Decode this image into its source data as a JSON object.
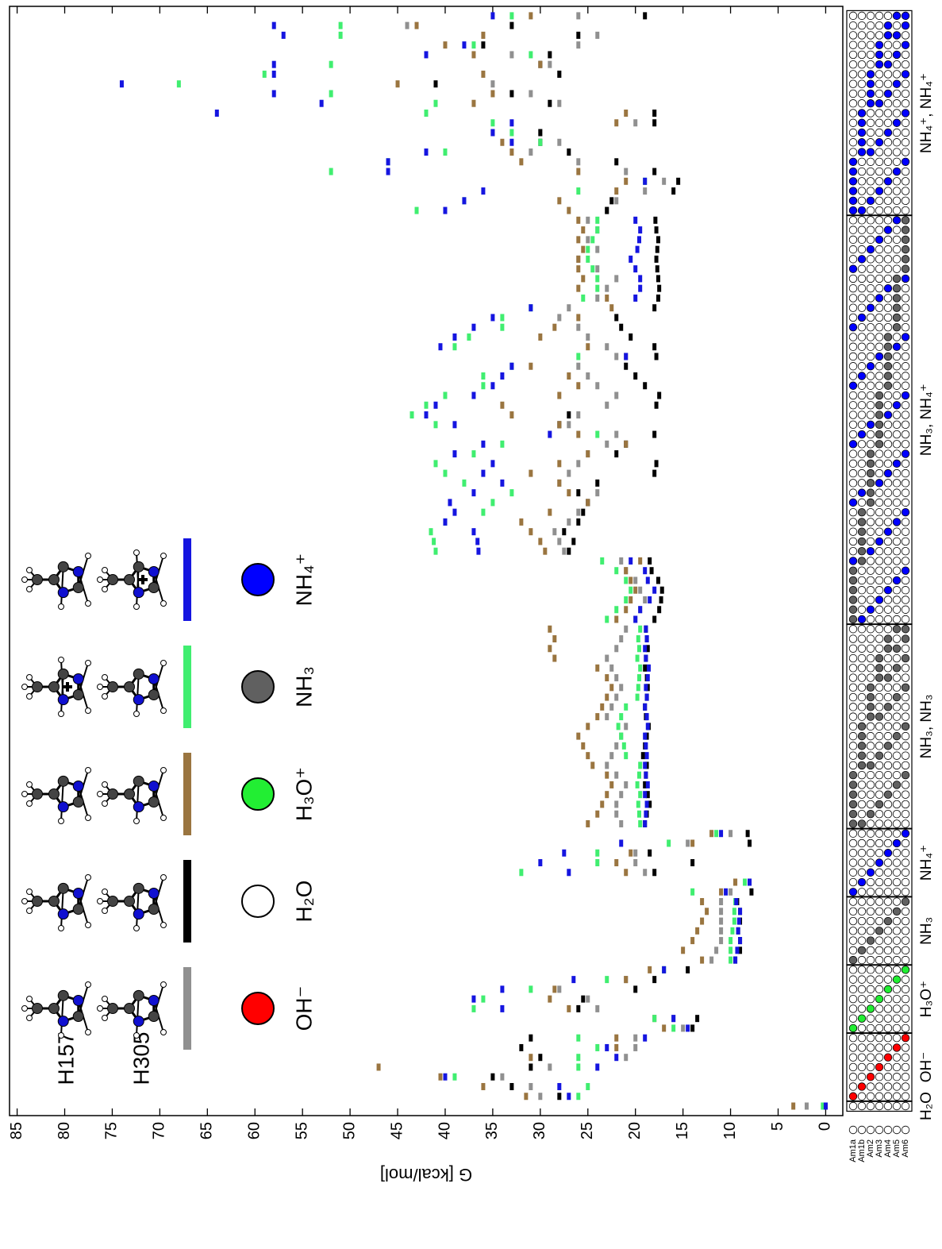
{
  "chart_data": {
    "type": "strip",
    "y_label": "G [kcal/mol]",
    "ylim": [
      -1.8,
      85.8
    ],
    "yticks": [
      0,
      5,
      10,
      15,
      20,
      25,
      30,
      35,
      40,
      45,
      50,
      55,
      60,
      65,
      70,
      75,
      80,
      85
    ],
    "series": [
      {
        "color": "#909090",
        "values": [
          2,
          30,
          31,
          34,
          29,
          21,
          20,
          20,
          15,
          16,
          24,
          25,
          28,
          21,
          17,
          12,
          11.5,
          11,
          11,
          11,
          11,
          11,
          10,
          9.5,
          19,
          20,
          20,
          14.5,
          10,
          21.5,
          22,
          22,
          21.5,
          21,
          22,
          23,
          22.5,
          22,
          21.5,
          21,
          23,
          22.5,
          22,
          21.5,
          22,
          22.5,
          23,
          22,
          21.5,
          21,
          20,
          19.5,
          19,
          19.5,
          20,
          21,
          21.5,
          27.5,
          28,
          28.5,
          27,
          26,
          25,
          24,
          28,
          27,
          26,
          25,
          23,
          22,
          27,
          26,
          23,
          22,
          24,
          25,
          26,
          22,
          23,
          25,
          26,
          28,
          27,
          24,
          23,
          22,
          24,
          26,
          24,
          25,
          24,
          25,
          23,
          22,
          19,
          17,
          21,
          26,
          31,
          28,
          30,
          20,
          18,
          28,
          31,
          35,
          28,
          29,
          33,
          26,
          24,
          44,
          26
        ]
      },
      {
        "color": "#000000",
        "values": [
          0,
          28,
          33,
          35,
          31,
          30,
          32,
          31,
          14,
          13.5,
          26,
          25.5,
          20,
          18,
          14.5,
          9.5,
          9,
          9,
          9.2,
          9,
          9,
          9.3,
          7.8,
          8,
          18,
          14,
          18.5,
          8,
          8.2,
          19,
          18.8,
          18.5,
          18.7,
          19,
          18.9,
          18.8,
          19.2,
          19,
          18.8,
          18.6,
          18.9,
          19,
          18.8,
          18.7,
          18.8,
          19,
          18.9,
          18.7,
          18.8,
          18.9,
          18,
          17.5,
          17.3,
          17.2,
          17.6,
          18.3,
          18.5,
          27,
          26.5,
          27.5,
          26,
          25.5,
          25,
          26,
          24,
          18,
          17.8,
          22,
          21,
          18,
          28,
          27,
          17.8,
          17.5,
          19,
          20,
          21,
          17.8,
          18,
          20.5,
          21.5,
          22,
          18,
          17.6,
          17.5,
          17.6,
          17.7,
          17.8,
          17.7,
          17.6,
          17.8,
          17.9,
          23,
          22.5,
          16,
          15.5,
          18,
          22,
          27,
          30,
          30,
          18,
          18,
          29,
          33,
          41,
          28,
          30,
          29,
          36,
          26,
          33,
          19
        ]
      },
      {
        "color": "#9a7540",
        "values": [
          3.4,
          31.5,
          36,
          40.5,
          47,
          31,
          22,
          22,
          17,
          18,
          27,
          29,
          28.5,
          21,
          18.5,
          13,
          15,
          14,
          13.5,
          13,
          12.5,
          13,
          11,
          9.5,
          21,
          22,
          20.5,
          14,
          12,
          25,
          24,
          23.5,
          23,
          22.5,
          23,
          24.5,
          25,
          25.5,
          26,
          25,
          24,
          23.5,
          23,
          22.5,
          23,
          24,
          28.5,
          29,
          28.5,
          29,
          22,
          21,
          20.5,
          20,
          20.5,
          21,
          19.5,
          29.5,
          30,
          31,
          32,
          29,
          25,
          27,
          28,
          31,
          28,
          25,
          21,
          26,
          28,
          33,
          34,
          28,
          26,
          27,
          31,
          21,
          25,
          30,
          28.5,
          26,
          22.5,
          23,
          26,
          25.5,
          26,
          26,
          25.5,
          26,
          25.5,
          26,
          27,
          28,
          22,
          21,
          26,
          32,
          33,
          34,
          35,
          22,
          21,
          37,
          35,
          45,
          36,
          30,
          37,
          40,
          36,
          43,
          31
        ]
      },
      {
        "color": "#40ee70",
        "values": [
          0.3,
          26,
          25,
          39,
          26,
          26,
          24,
          26,
          16,
          18,
          37,
          36,
          31,
          23,
          17,
          10,
          10,
          10,
          9.8,
          9.6,
          9.6,
          9.5,
          14,
          8.5,
          32,
          24,
          24,
          16.5,
          11.5,
          19.5,
          19.6,
          19.7,
          19.5,
          19.8,
          19.6,
          19.5,
          21,
          21.2,
          21.5,
          21.8,
          21.5,
          21,
          19.8,
          19.7,
          19.6,
          19.5,
          19.8,
          19.6,
          19.7,
          19.5,
          23,
          22,
          21,
          20.5,
          21,
          22,
          23.5,
          41,
          41.2,
          41.5,
          40,
          36,
          35,
          33,
          38,
          40,
          41,
          37,
          34,
          24,
          41,
          43.5,
          42,
          40,
          36,
          36,
          33,
          26,
          39,
          37.5,
          34,
          34,
          31,
          25.5,
          24,
          24,
          24.5,
          25,
          25,
          24.5,
          24,
          24,
          43,
          38,
          26,
          19,
          52,
          46,
          40,
          30,
          33,
          35,
          42,
          41,
          52,
          68,
          59,
          52,
          31,
          37,
          51,
          51,
          33
        ]
      },
      {
        "color": "#1515e0",
        "values": [
          0,
          27,
          28,
          40,
          24,
          22,
          23,
          19,
          14.5,
          16,
          34,
          37,
          34,
          26.5,
          17,
          9.5,
          9.3,
          9,
          9.2,
          9.1,
          9,
          9.4,
          10.5,
          8,
          27,
          30,
          27.5,
          21.5,
          11,
          19,
          18.9,
          18.8,
          19,
          18.7,
          18.9,
          19,
          18.8,
          18.9,
          19,
          18.7,
          18.8,
          19,
          18.8,
          18.9,
          18.7,
          18.6,
          18.9,
          19,
          18.8,
          18.9,
          20,
          19.5,
          18.5,
          18,
          18.7,
          19,
          20.5,
          36.5,
          36.6,
          37,
          40,
          39,
          39.5,
          37,
          34,
          36,
          35,
          39,
          36,
          29,
          39,
          42,
          41,
          37,
          35,
          34,
          33,
          21,
          40.5,
          39,
          37,
          35,
          31,
          20,
          19.5,
          19.5,
          20,
          20.5,
          19.8,
          19.6,
          19.5,
          20,
          40,
          38,
          36,
          19,
          46,
          46,
          42,
          33,
          35,
          33,
          64,
          53,
          58,
          74,
          58,
          58,
          42,
          38,
          57,
          58,
          35
        ]
      }
    ],
    "configurations": {
      "sites": [
        "Am1a",
        "Am1b",
        "Am2",
        "Am3",
        "Am4",
        "Am5",
        "Am6"
      ],
      "groups": [
        {
          "label": "H₂O",
          "configs": 1
        },
        {
          "label": "OH⁻",
          "configs": 7
        },
        {
          "label": "H₃O⁺",
          "configs": 7
        },
        {
          "label": "NH₃",
          "configs": 7
        },
        {
          "label": "NH₄⁺",
          "configs": 7
        },
        {
          "label": "NH₃, NH₃",
          "configs": 21
        },
        {
          "label": "NH₃, NH₄⁺",
          "configs": 42
        },
        {
          "label": "NH₄⁺, NH₄⁺",
          "configs": 21
        }
      ]
    },
    "legend": {
      "structures": [
        "H157",
        "H305"
      ],
      "species": [
        {
          "label": "OH⁻",
          "color": "#ff0000"
        },
        {
          "label": "H₂O",
          "color": "#ffffff"
        },
        {
          "label": "H₃O⁺",
          "color": "#22ee33"
        },
        {
          "label": "NH₃",
          "color": "#606060"
        },
        {
          "label": "NH₄⁺",
          "color": "#0000ff"
        }
      ]
    }
  }
}
